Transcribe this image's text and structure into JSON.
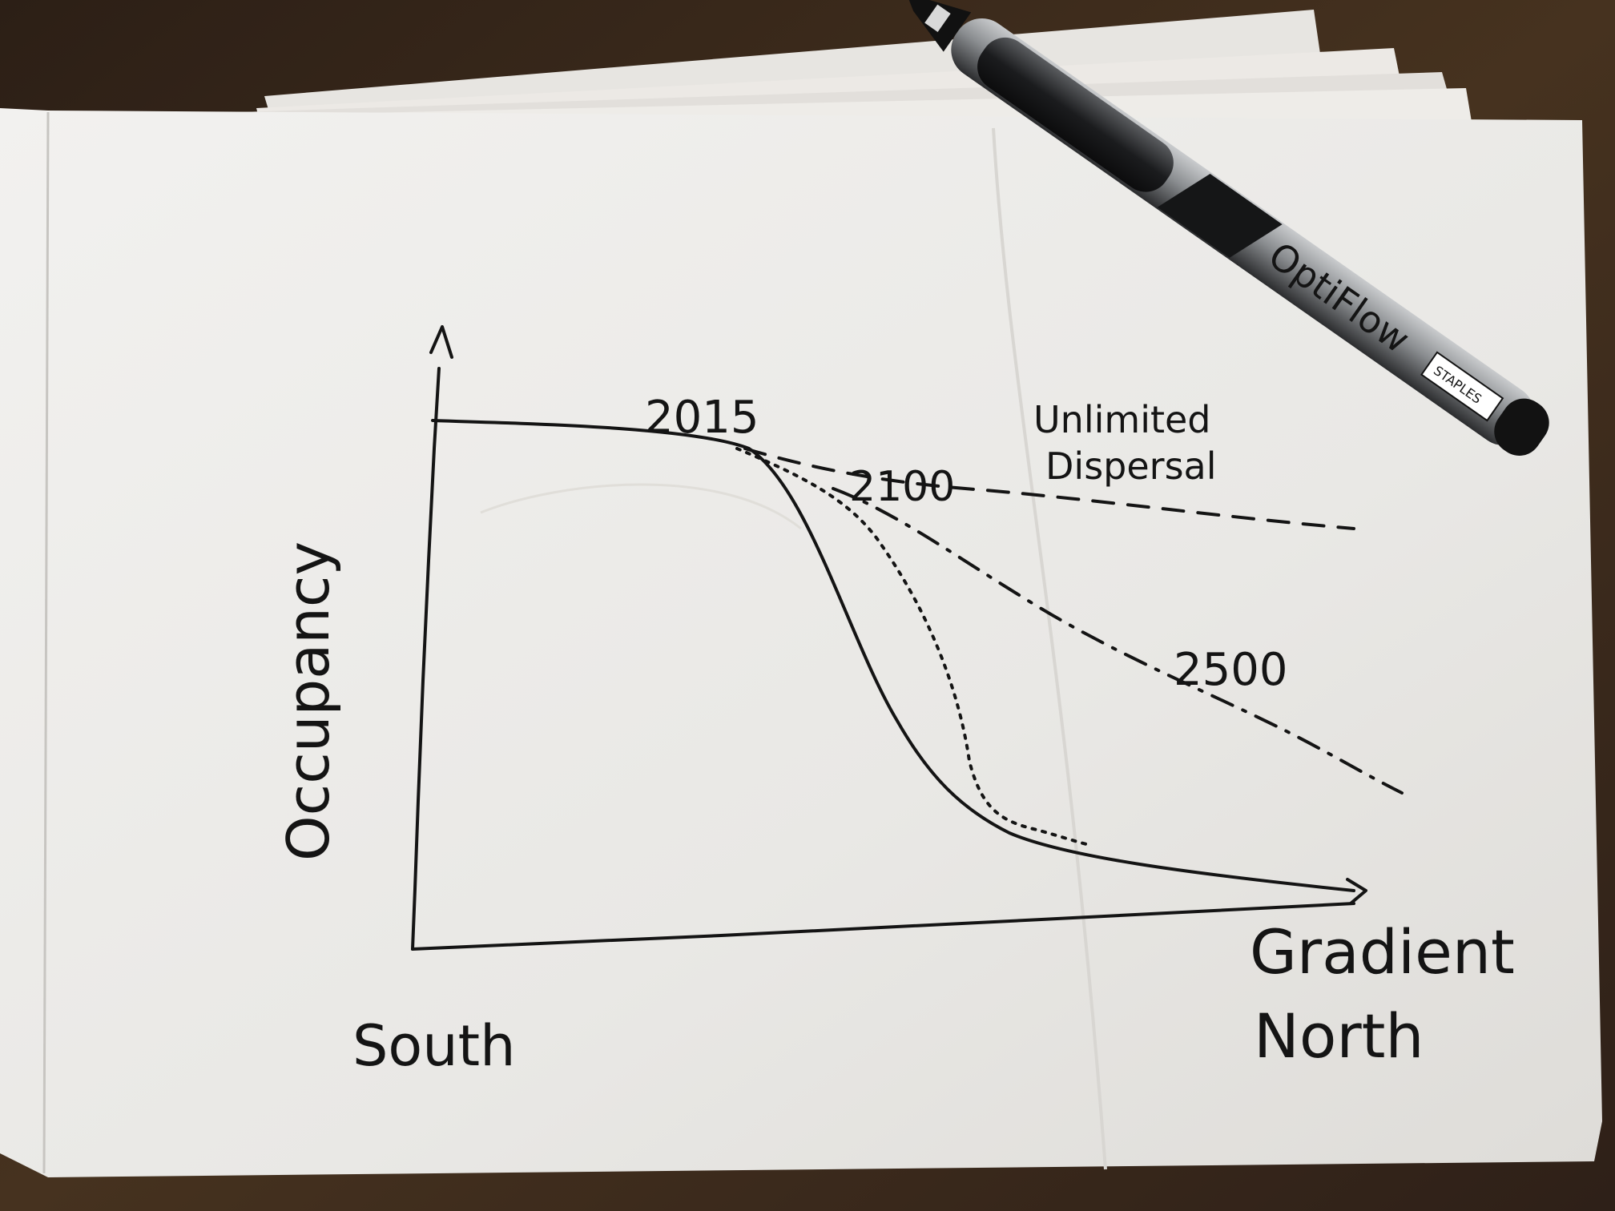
{
  "sketch": {
    "axes": {
      "y_label": "Occupancy",
      "x_label_left": "South",
      "x_label_right_line1": "Gradient",
      "x_label_right_line2": "North"
    },
    "curves": [
      {
        "label": "2015",
        "style": "solid"
      },
      {
        "label": "2100",
        "style": "dotted"
      },
      {
        "label": "2500",
        "style": "dash-dot"
      },
      {
        "label_line1": "Unlimited",
        "label_line2": "Dispersal",
        "style": "dashed"
      }
    ]
  },
  "pen": {
    "brand": "OptiFlow",
    "maker": "STAPLES"
  },
  "colors": {
    "table": "#3a2a1e",
    "paper": "#ecebe8",
    "ink": "#141414",
    "pen_body": "#8c8f92"
  }
}
